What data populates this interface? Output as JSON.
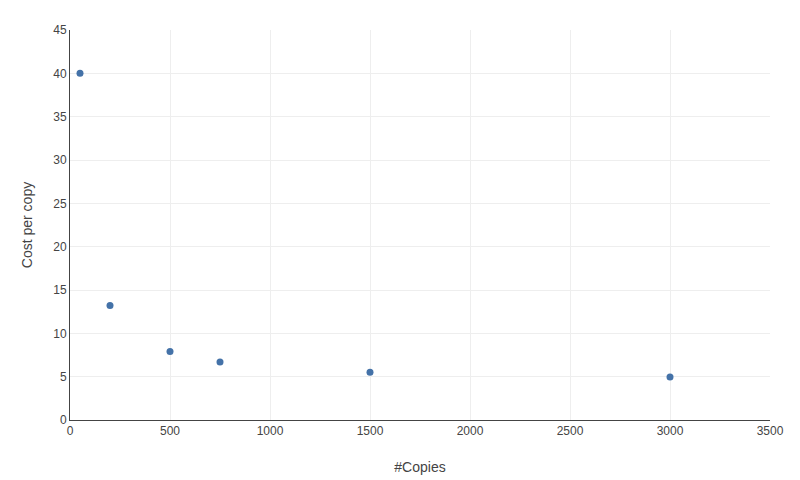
{
  "chart_data": {
    "type": "scatter",
    "x": [
      50,
      200,
      500,
      750,
      1500,
      3000
    ],
    "values": [
      40.0,
      13.2,
      7.9,
      6.7,
      5.5,
      4.95
    ],
    "xlabel": "#Copies",
    "ylabel": "Cost per copy",
    "xlim": [
      0,
      3500
    ],
    "ylim": [
      0,
      45
    ],
    "xticks": [
      0,
      500,
      1000,
      1500,
      2000,
      2500,
      3000,
      3500
    ],
    "yticks": [
      0,
      5,
      10,
      15,
      20,
      25,
      30,
      35,
      40,
      45
    ],
    "color": "#4472a8",
    "grid": true
  }
}
